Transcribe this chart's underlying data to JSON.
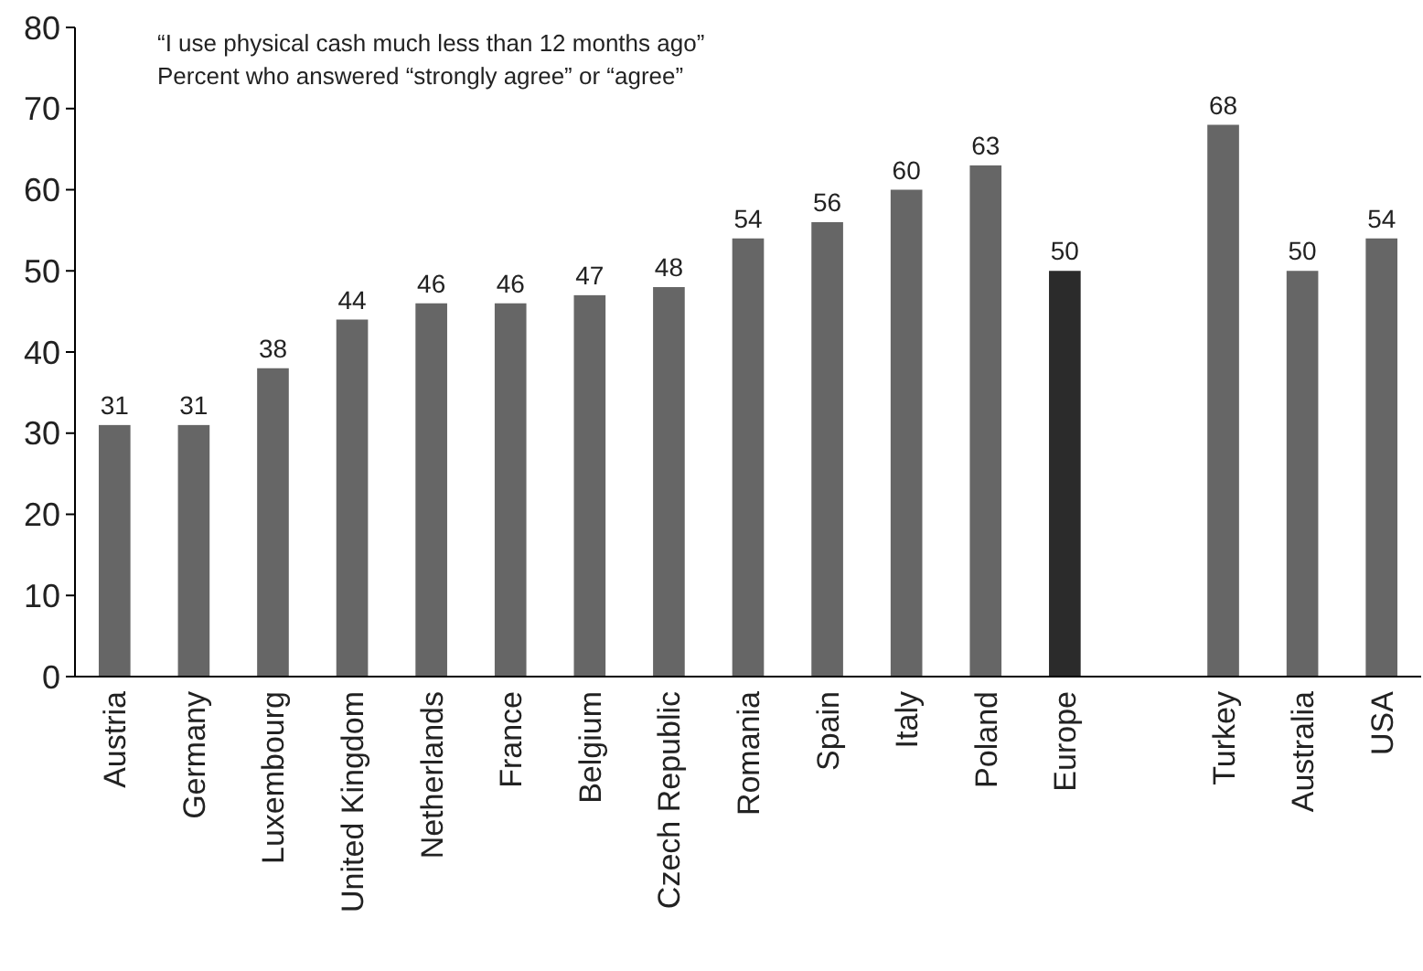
{
  "chart_data": {
    "type": "bar",
    "title": "“I use physical cash much less than 12 months ago”",
    "subtitle": "Percent who answered “strongly agree” or “agree”",
    "categories": [
      "Austria",
      "Germany",
      "Luxembourg",
      "United Kingdom",
      "Netherlands",
      "France",
      "Belgium",
      "Czech Republic",
      "Romania",
      "Spain",
      "Italy",
      "Poland",
      "Europe",
      null,
      "Turkey",
      "Australia",
      "USA"
    ],
    "values": [
      31,
      31,
      38,
      44,
      46,
      46,
      47,
      48,
      54,
      56,
      60,
      63,
      50,
      null,
      68,
      50,
      54
    ],
    "colors": [
      "#666666",
      "#666666",
      "#666666",
      "#666666",
      "#666666",
      "#666666",
      "#666666",
      "#666666",
      "#666666",
      "#666666",
      "#666666",
      "#666666",
      "#2b2b2b",
      null,
      "#666666",
      "#666666",
      "#666666"
    ],
    "ylim": [
      0,
      80
    ],
    "yticks": [
      0,
      10,
      20,
      30,
      40,
      50,
      60,
      70,
      80
    ],
    "data_labels": true,
    "grid": false
  }
}
